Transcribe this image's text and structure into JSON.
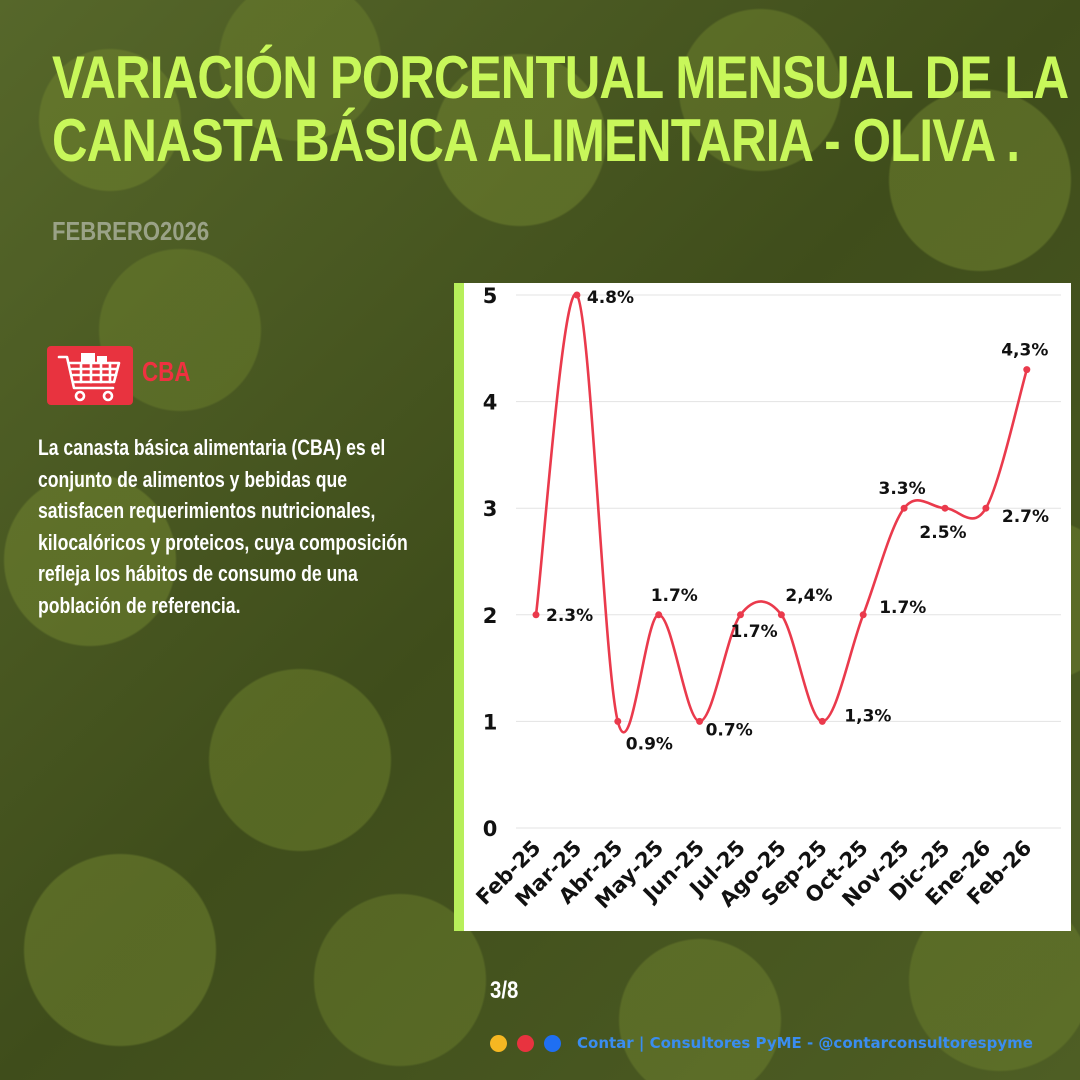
{
  "header": {
    "title_line1": "VARIACIÓN PORCENTUAL MENSUAL DE LA",
    "title_line2": "CANASTA BÁSICA ALIMENTARIA - OLIVA .",
    "subtitle": "FEBRERO2026"
  },
  "sidebar": {
    "icon": "shopping-cart-icon",
    "badge_label": "CBA",
    "description": "La canasta básica alimentaria (CBA) es el conjunto de alimentos y bebidas que satisfacen requerimientos nutricionales, kilocalóricos y proteicos, cuya composición refleja los hábitos de consumo de una población de referencia."
  },
  "footer": {
    "page": "3/8",
    "dots": [
      "#f5b722",
      "#e8333f",
      "#1f6ff2"
    ],
    "credit": "Contar | Consultores PyME - @contarconsultorespyme"
  },
  "colors": {
    "title": "#c8f75a",
    "accent_red": "#e8333f",
    "line": "#ea3a4c",
    "chart_border": "#b7ef5a"
  },
  "chart_data": {
    "type": "line",
    "categories": [
      "Feb-25",
      "Mar-25",
      "Abr-25",
      "May-25",
      "Jun-25",
      "Jul-25",
      "Ago-25",
      "Sep-25",
      "Oct-25",
      "Nov-25",
      "Dic-25",
      "Ene-26",
      "Feb-26"
    ],
    "values": [
      2,
      5,
      1,
      2,
      1,
      2,
      2,
      1,
      2,
      3,
      3,
      3,
      4.3
    ],
    "data_labels": [
      "2.3%",
      "4.8%",
      "0.9%",
      "1.7%",
      "0.7%",
      "1.7%",
      "2,4%",
      "1,3%",
      "1.7%",
      "3.3%",
      "2.5%",
      "2.7%",
      "4,3%"
    ],
    "yticks": [
      "0",
      "1",
      "2",
      "3",
      "4",
      "5"
    ],
    "ylim": [
      0,
      5
    ],
    "grid": true,
    "smooth": true
  }
}
